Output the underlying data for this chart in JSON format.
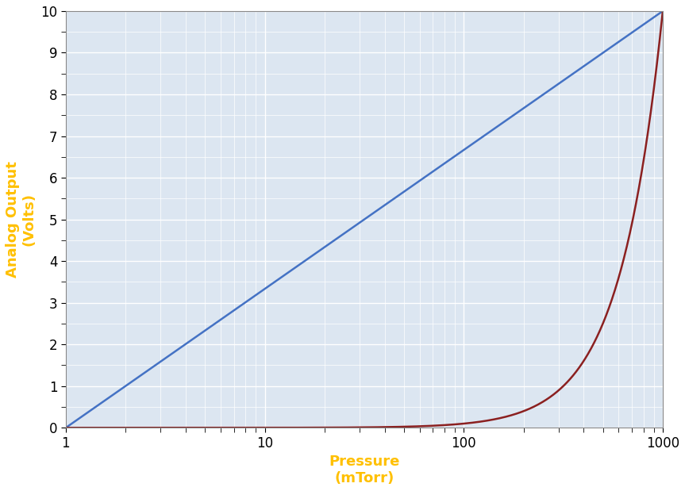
{
  "title": "",
  "xlabel_line1": "Pressure",
  "xlabel_line2": "(mTorr)",
  "ylabel_line1": "Analog Output",
  "ylabel_line2": "(Volts)",
  "xmin": 1,
  "xmax": 1000,
  "ymin": 0,
  "ymax": 10,
  "xticks": [
    1,
    10,
    100,
    1000
  ],
  "yticks": [
    0,
    1,
    2,
    3,
    4,
    5,
    6,
    7,
    8,
    9,
    10
  ],
  "blue_color": "#4472C4",
  "red_color": "#8B2020",
  "background_color": "#DCE6F1",
  "grid_color": "#FFFFFF",
  "axis_label_color": "#FFC000",
  "line_width": 1.8,
  "xlabel_fontsize": 13,
  "ylabel_fontsize": 13,
  "tick_fontsize": 12,
  "red_power": 2.0
}
